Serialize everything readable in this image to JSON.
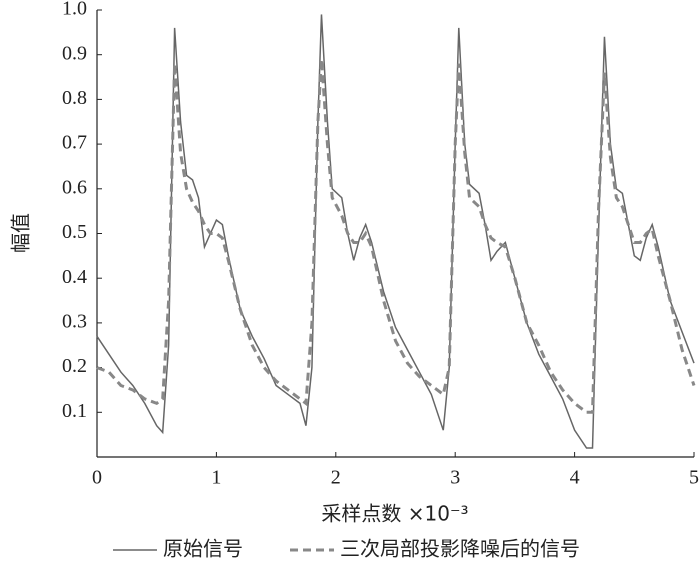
{
  "chart_data": {
    "type": "line",
    "xlabel": "采样点数 ×10⁻³",
    "ylabel": "幅值",
    "x": [
      0,
      0.1,
      0.2,
      0.3,
      0.4,
      0.5,
      0.55,
      0.6,
      0.65,
      0.7,
      0.75,
      0.8,
      0.85,
      0.9,
      0.95,
      1.0,
      1.05,
      1.1,
      1.2,
      1.3,
      1.4,
      1.5,
      1.6,
      1.7,
      1.75,
      1.8,
      1.85,
      1.88,
      1.93,
      1.97,
      2.05,
      2.1,
      2.15,
      2.2,
      2.25,
      2.3,
      2.4,
      2.5,
      2.6,
      2.7,
      2.8,
      2.9,
      2.95,
      3.0,
      3.03,
      3.08,
      3.12,
      3.2,
      3.25,
      3.3,
      3.35,
      3.42,
      3.5,
      3.6,
      3.7,
      3.8,
      3.9,
      4.0,
      4.1,
      4.15,
      4.2,
      4.25,
      4.3,
      4.35,
      4.4,
      4.45,
      4.5,
      4.55,
      4.6,
      4.65,
      4.7,
      4.8,
      4.9,
      5.0
    ],
    "series": [
      {
        "name": "原始信号",
        "color": "#666666",
        "dash": false,
        "values": [
          0.27,
          0.23,
          0.19,
          0.16,
          0.12,
          0.07,
          0.055,
          0.25,
          0.96,
          0.75,
          0.63,
          0.62,
          0.58,
          0.47,
          0.5,
          0.53,
          0.52,
          0.45,
          0.33,
          0.27,
          0.22,
          0.16,
          0.14,
          0.12,
          0.07,
          0.2,
          0.75,
          0.99,
          0.75,
          0.6,
          0.58,
          0.5,
          0.44,
          0.49,
          0.52,
          0.48,
          0.37,
          0.29,
          0.24,
          0.19,
          0.14,
          0.06,
          0.2,
          0.7,
          0.96,
          0.7,
          0.61,
          0.59,
          0.52,
          0.44,
          0.46,
          0.48,
          0.4,
          0.3,
          0.23,
          0.18,
          0.13,
          0.06,
          0.02,
          0.02,
          0.5,
          0.94,
          0.7,
          0.6,
          0.59,
          0.52,
          0.45,
          0.44,
          0.49,
          0.52,
          0.47,
          0.35,
          0.28,
          0.21
        ]
      },
      {
        "name": "三次局部投影降噪后的信号",
        "color": "#888888",
        "dash": true,
        "values": [
          0.2,
          0.19,
          0.16,
          0.15,
          0.13,
          0.12,
          0.13,
          0.35,
          0.88,
          0.68,
          0.6,
          0.57,
          0.55,
          0.52,
          0.5,
          0.5,
          0.49,
          0.44,
          0.33,
          0.25,
          0.2,
          0.17,
          0.15,
          0.13,
          0.12,
          0.3,
          0.75,
          0.89,
          0.7,
          0.58,
          0.54,
          0.5,
          0.48,
          0.48,
          0.5,
          0.47,
          0.35,
          0.26,
          0.21,
          0.18,
          0.16,
          0.14,
          0.2,
          0.7,
          0.88,
          0.68,
          0.58,
          0.56,
          0.52,
          0.49,
          0.48,
          0.47,
          0.4,
          0.3,
          0.25,
          0.19,
          0.15,
          0.12,
          0.1,
          0.1,
          0.55,
          0.86,
          0.67,
          0.58,
          0.56,
          0.52,
          0.48,
          0.48,
          0.5,
          0.51,
          0.45,
          0.35,
          0.24,
          0.16
        ]
      }
    ],
    "xlim": [
      0,
      5
    ],
    "xticks": [
      0,
      1,
      2,
      3,
      4,
      5
    ],
    "ylim": [
      0,
      1
    ],
    "yticks": [
      0.1,
      0.2,
      0.3,
      0.4,
      0.5,
      0.6,
      0.7,
      0.8,
      0.9,
      {
        "value": 1,
        "label": "1.0"
      }
    ],
    "grid": false,
    "legend": "bottom"
  }
}
